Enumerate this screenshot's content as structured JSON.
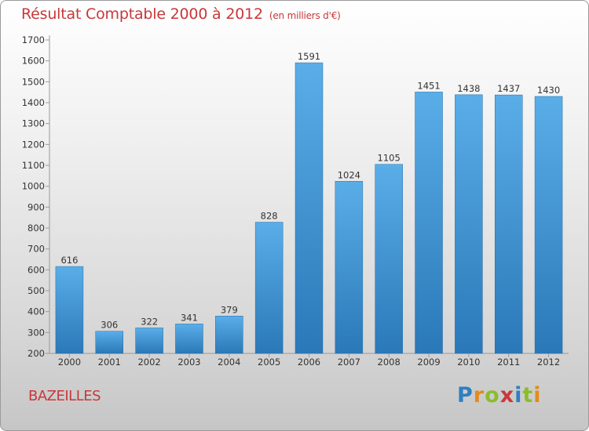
{
  "title": "Résultat Comptable 2000 à 2012",
  "unit": "(en milliers d'€)",
  "commune": "BAZEILLES",
  "logo": {
    "text": "Proxiti",
    "letters": [
      "P",
      "r",
      "o",
      "x",
      "i",
      "t",
      "i"
    ],
    "colors": [
      "#2f7fc1",
      "#e48b1c",
      "#8bbd2a",
      "#c8383a",
      "#2f7fc1",
      "#8bbd2a",
      "#e48b1c"
    ]
  },
  "colors": {
    "bar_top": "#5aaee8",
    "bar_bottom": "#2a78b8",
    "text": "#c8383a",
    "grid": "#9a9a9a"
  },
  "chart_data": {
    "type": "bar",
    "categories": [
      "2000",
      "2001",
      "2002",
      "2003",
      "2004",
      "2005",
      "2006",
      "2007",
      "2008",
      "2009",
      "2010",
      "2011",
      "2012"
    ],
    "values": [
      616,
      306,
      322,
      341,
      379,
      828,
      1591,
      1024,
      1105,
      1451,
      1438,
      1437,
      1430
    ],
    "title": "Résultat Comptable 2000 à 2012",
    "xlabel": "",
    "ylabel": "",
    "ylim": [
      200,
      1700
    ],
    "yticks": [
      200,
      300,
      400,
      500,
      600,
      700,
      800,
      900,
      1000,
      1100,
      1200,
      1300,
      1400,
      1500,
      1600,
      1700
    ],
    "data_labels": true,
    "grid": false
  }
}
